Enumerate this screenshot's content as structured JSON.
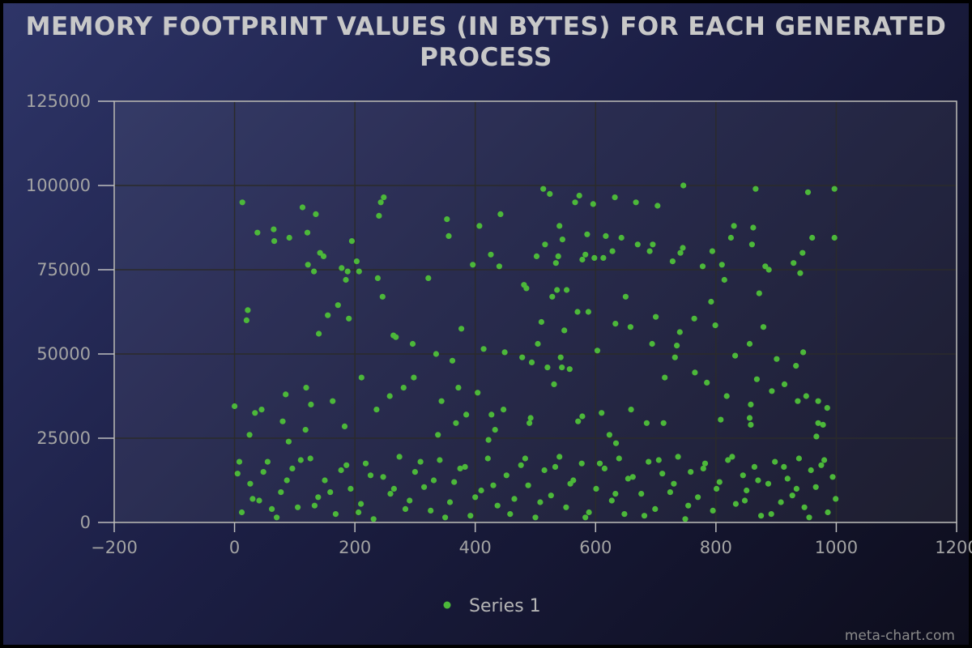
{
  "chart_data": {
    "type": "scatter",
    "title": "MEMORY FOOTPRINT VALUES (IN BYTES) FOR EACH GENERATED PROCESS",
    "xlabel": "",
    "ylabel": "",
    "xlim": [
      -200,
      1200
    ],
    "ylim": [
      0,
      125000
    ],
    "x_ticks": [
      -200,
      0,
      200,
      400,
      600,
      800,
      1000,
      1200
    ],
    "y_ticks": [
      0,
      25000,
      50000,
      75000,
      100000,
      125000
    ],
    "x_tick_labels": [
      "-200",
      "0",
      "200",
      "400",
      "600",
      "800",
      "1000",
      "1200"
    ],
    "y_tick_labels": [
      "0",
      "25000",
      "50000",
      "75000",
      "100000",
      "125000"
    ],
    "grid": true,
    "legend": "bottom-center",
    "point_color": "#4cb83a",
    "series": [
      {
        "name": "Series 1",
        "points": [
          [
            0,
            34500
          ],
          [
            13,
            95000
          ],
          [
            20,
            60000
          ],
          [
            22,
            63000
          ],
          [
            25,
            26000
          ],
          [
            34,
            32500
          ],
          [
            38,
            86000
          ],
          [
            45,
            33500
          ],
          [
            65,
            87000
          ],
          [
            66,
            83500
          ],
          [
            80,
            30000
          ],
          [
            85,
            38000
          ],
          [
            90,
            24000
          ],
          [
            91,
            84500
          ],
          [
            113,
            93500
          ],
          [
            118,
            27500
          ],
          [
            119,
            40000
          ],
          [
            121,
            86000
          ],
          [
            122,
            76500
          ],
          [
            127,
            35000
          ],
          [
            132,
            74500
          ],
          [
            135,
            91500
          ],
          [
            140,
            56000
          ],
          [
            142,
            80000
          ],
          [
            148,
            79000
          ],
          [
            155,
            61500
          ],
          [
            163,
            36000
          ],
          [
            172,
            64500
          ],
          [
            178,
            75500
          ],
          [
            183,
            28500
          ],
          [
            185,
            72000
          ],
          [
            188,
            74500
          ],
          [
            190,
            60500
          ],
          [
            195,
            83500
          ],
          [
            203,
            77500
          ],
          [
            207,
            74500
          ],
          [
            211,
            43000
          ],
          [
            236,
            33500
          ],
          [
            238,
            72500
          ],
          [
            240,
            91000
          ],
          [
            243,
            95000
          ],
          [
            246,
            67000
          ],
          [
            248,
            96500
          ],
          [
            258,
            37500
          ],
          [
            264,
            55500
          ],
          [
            268,
            55000
          ],
          [
            281,
            40000
          ],
          [
            296,
            53000
          ],
          [
            298,
            43000
          ],
          [
            322,
            72500
          ],
          [
            335,
            50000
          ],
          [
            338,
            26000
          ],
          [
            344,
            36000
          ],
          [
            353,
            90000
          ],
          [
            356,
            85000
          ],
          [
            362,
            48000
          ],
          [
            368,
            29500
          ],
          [
            372,
            40000
          ],
          [
            377,
            57500
          ],
          [
            385,
            32000
          ],
          [
            396,
            76500
          ],
          [
            404,
            38500
          ],
          [
            407,
            88000
          ],
          [
            414,
            51500
          ],
          [
            422,
            24500
          ],
          [
            426,
            79500
          ],
          [
            427,
            32000
          ],
          [
            433,
            27500
          ],
          [
            442,
            91500
          ],
          [
            440,
            76000
          ],
          [
            447,
            33500
          ],
          [
            449,
            50500
          ],
          [
            478,
            49000
          ],
          [
            481,
            70500
          ],
          [
            485,
            69500
          ],
          [
            490,
            29500
          ],
          [
            492,
            31000
          ],
          [
            494,
            47500
          ],
          [
            502,
            79000
          ],
          [
            504,
            53000
          ],
          [
            510,
            59500
          ],
          [
            513,
            99000
          ],
          [
            516,
            82500
          ],
          [
            520,
            46000
          ],
          [
            524,
            97500
          ],
          [
            528,
            67000
          ],
          [
            531,
            41000
          ],
          [
            534,
            77000
          ],
          [
            536,
            69000
          ],
          [
            538,
            79000
          ],
          [
            540,
            88000
          ],
          [
            542,
            49000
          ],
          [
            544,
            46000
          ],
          [
            545,
            84000
          ],
          [
            548,
            57000
          ],
          [
            552,
            69000
          ],
          [
            557,
            45500
          ],
          [
            566,
            95000
          ],
          [
            570,
            62500
          ],
          [
            571,
            30000
          ],
          [
            573,
            97000
          ],
          [
            578,
            31500
          ],
          [
            578,
            78000
          ],
          [
            583,
            79500
          ],
          [
            586,
            85500
          ],
          [
            588,
            62500
          ],
          [
            596,
            94500
          ],
          [
            598,
            78500
          ],
          [
            603,
            51000
          ],
          [
            610,
            32500
          ],
          [
            613,
            78500
          ],
          [
            617,
            85000
          ],
          [
            623,
            26000
          ],
          [
            628,
            80500
          ],
          [
            632,
            96500
          ],
          [
            633,
            59000
          ],
          [
            634,
            23500
          ],
          [
            643,
            84500
          ],
          [
            650,
            67000
          ],
          [
            658,
            58000
          ],
          [
            659,
            33500
          ],
          [
            667,
            95000
          ],
          [
            670,
            82500
          ],
          [
            685,
            29500
          ],
          [
            690,
            80500
          ],
          [
            694,
            53000
          ],
          [
            695,
            82500
          ],
          [
            700,
            61000
          ],
          [
            703,
            94000
          ],
          [
            713,
            29500
          ],
          [
            715,
            43000
          ],
          [
            728,
            77500
          ],
          [
            732,
            49000
          ],
          [
            735,
            52500
          ],
          [
            740,
            56500
          ],
          [
            741,
            80000
          ],
          [
            745,
            81500
          ],
          [
            746,
            100000
          ],
          [
            764,
            60500
          ],
          [
            765,
            44500
          ],
          [
            778,
            76000
          ],
          [
            785,
            41500
          ],
          [
            792,
            65500
          ],
          [
            794,
            80500
          ],
          [
            799,
            58500
          ],
          [
            808,
            30500
          ],
          [
            810,
            76500
          ],
          [
            814,
            72000
          ],
          [
            818,
            37500
          ],
          [
            825,
            84500
          ],
          [
            830,
            88000
          ],
          [
            832,
            49500
          ],
          [
            856,
            53000
          ],
          [
            856,
            31000
          ],
          [
            858,
            29000
          ],
          [
            858,
            35000
          ],
          [
            860,
            82500
          ],
          [
            862,
            87500
          ],
          [
            866,
            99000
          ],
          [
            868,
            42500
          ],
          [
            872,
            68000
          ],
          [
            879,
            58000
          ],
          [
            882,
            76000
          ],
          [
            888,
            75000
          ],
          [
            893,
            39000
          ],
          [
            901,
            48500
          ],
          [
            914,
            41000
          ],
          [
            929,
            77000
          ],
          [
            933,
            46500
          ],
          [
            936,
            36000
          ],
          [
            940,
            74000
          ],
          [
            944,
            80000
          ],
          [
            945,
            50500
          ],
          [
            950,
            37500
          ],
          [
            953,
            98000
          ],
          [
            960,
            84500
          ],
          [
            967,
            25500
          ],
          [
            970,
            29500
          ],
          [
            970,
            36000
          ],
          [
            978,
            29000
          ],
          [
            985,
            34000
          ],
          [
            997,
            99000
          ],
          [
            997,
            84500
          ],
          [
            5,
            14500
          ],
          [
            12,
            3000
          ],
          [
            26,
            11500
          ],
          [
            41,
            6500
          ],
          [
            55,
            18000
          ],
          [
            70,
            1500
          ],
          [
            77,
            9000
          ],
          [
            96,
            16000
          ],
          [
            105,
            4500
          ],
          [
            126,
            19000
          ],
          [
            139,
            7500
          ],
          [
            150,
            12500
          ],
          [
            168,
            2500
          ],
          [
            177,
            15500
          ],
          [
            193,
            10000
          ],
          [
            210,
            5500
          ],
          [
            218,
            17500
          ],
          [
            231,
            1000
          ],
          [
            247,
            13500
          ],
          [
            259,
            8500
          ],
          [
            274,
            19500
          ],
          [
            284,
            4000
          ],
          [
            300,
            15000
          ],
          [
            315,
            10500
          ],
          [
            326,
            3500
          ],
          [
            341,
            18500
          ],
          [
            358,
            6000
          ],
          [
            365,
            12000
          ],
          [
            383,
            16500
          ],
          [
            392,
            2000
          ],
          [
            410,
            9500
          ],
          [
            421,
            19000
          ],
          [
            437,
            5000
          ],
          [
            452,
            14000
          ],
          [
            465,
            7000
          ],
          [
            476,
            17000
          ],
          [
            488,
            11000
          ],
          [
            500,
            1500
          ],
          [
            515,
            15500
          ],
          [
            526,
            8000
          ],
          [
            540,
            19500
          ],
          [
            551,
            4500
          ],
          [
            563,
            12500
          ],
          [
            577,
            17500
          ],
          [
            589,
            3000
          ],
          [
            601,
            10000
          ],
          [
            615,
            16000
          ],
          [
            627,
            6500
          ],
          [
            639,
            19000
          ],
          [
            648,
            2500
          ],
          [
            662,
            13500
          ],
          [
            676,
            8500
          ],
          [
            688,
            18000
          ],
          [
            699,
            4000
          ],
          [
            711,
            14500
          ],
          [
            724,
            9000
          ],
          [
            737,
            19500
          ],
          [
            749,
            1000
          ],
          [
            758,
            15000
          ],
          [
            770,
            7500
          ],
          [
            782,
            17500
          ],
          [
            795,
            3500
          ],
          [
            806,
            12000
          ],
          [
            820,
            18500
          ],
          [
            833,
            5500
          ],
          [
            845,
            14000
          ],
          [
            851,
            9500
          ],
          [
            864,
            16500
          ],
          [
            875,
            2000
          ],
          [
            887,
            11500
          ],
          [
            898,
            18000
          ],
          [
            908,
            6000
          ],
          [
            919,
            13000
          ],
          [
            927,
            8000
          ],
          [
            938,
            19000
          ],
          [
            947,
            4500
          ],
          [
            958,
            15500
          ],
          [
            966,
            10500
          ],
          [
            975,
            17000
          ],
          [
            986,
            3000
          ],
          [
            994,
            13500
          ],
          [
            8,
            18000
          ],
          [
            30,
            7000
          ],
          [
            48,
            15000
          ],
          [
            62,
            4000
          ],
          [
            87,
            12500
          ],
          [
            110,
            18500
          ],
          [
            133,
            5000
          ],
          [
            159,
            9000
          ],
          [
            186,
            17000
          ],
          [
            206,
            3000
          ],
          [
            226,
            14000
          ],
          [
            265,
            10000
          ],
          [
            291,
            6500
          ],
          [
            309,
            18000
          ],
          [
            331,
            12500
          ],
          [
            350,
            1500
          ],
          [
            375,
            16000
          ],
          [
            400,
            7500
          ],
          [
            430,
            11000
          ],
          [
            458,
            2500
          ],
          [
            483,
            19000
          ],
          [
            508,
            6000
          ],
          [
            533,
            16500
          ],
          [
            558,
            11500
          ],
          [
            583,
            1500
          ],
          [
            607,
            17500
          ],
          [
            633,
            8500
          ],
          [
            654,
            13000
          ],
          [
            681,
            2000
          ],
          [
            705,
            18500
          ],
          [
            730,
            11500
          ],
          [
            754,
            5000
          ],
          [
            779,
            16000
          ],
          [
            801,
            10000
          ],
          [
            827,
            19500
          ],
          [
            848,
            6500
          ],
          [
            870,
            12500
          ],
          [
            892,
            2500
          ],
          [
            913,
            16500
          ],
          [
            934,
            10000
          ],
          [
            955,
            1500
          ],
          [
            980,
            18500
          ],
          [
            999,
            7000
          ]
        ]
      }
    ]
  },
  "watermark": "meta-chart.com"
}
